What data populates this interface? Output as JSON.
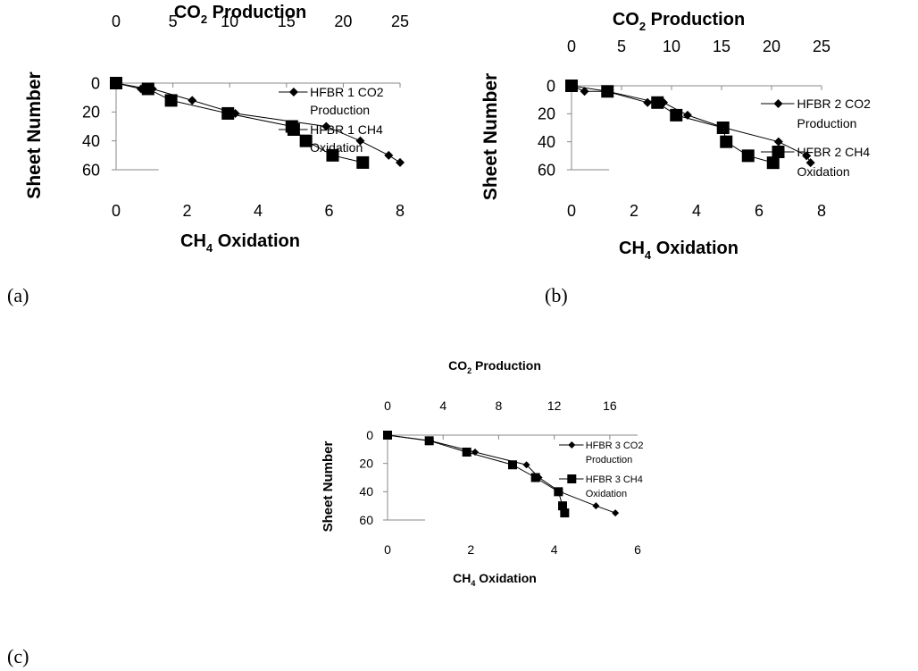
{
  "figure": {
    "panel_labels": [
      "(a)",
      "(b)",
      "(c)"
    ]
  },
  "chart_data": [
    {
      "type": "scatter",
      "panel": "(a)",
      "title": "",
      "xlabel_bottom_main": "CH",
      "xlabel_bottom_sub": "4",
      "xlabel_bottom_tail": " Oxidation",
      "xlabel_top_main": "CO",
      "xlabel_top_sub": "2",
      "xlabel_top_tail": " Production",
      "ylabel": "Sheet Number",
      "xlim_bottom": [
        0,
        8
      ],
      "xticks_bottom": [
        "0",
        "2",
        "4",
        "6",
        "8"
      ],
      "xlim_top": [
        0,
        25
      ],
      "xticks_top": [
        "0",
        "5",
        "10",
        "15",
        "20",
        "25"
      ],
      "ylim": [
        0,
        60
      ],
      "yticks": [
        "0",
        "20",
        "40",
        "60"
      ],
      "y_inverted": true,
      "grid": false,
      "legend_position": "right",
      "series": [
        {
          "name": "HFBR 1 CO2 Production",
          "legend_lines": [
            "HFBR 1 CO2",
            "Production"
          ],
          "marker": "diamond",
          "axis": "top",
          "x": [
            0,
            2.2,
            3.2,
            6.7,
            10.5,
            18.5,
            21.5,
            24,
            25
          ],
          "y": [
            0,
            4,
            4,
            12,
            21,
            30,
            40,
            50,
            55
          ]
        },
        {
          "name": "HFBR 1 CH4 Oxidation",
          "legend_lines": [
            "HFBR 1 CH4",
            "Oxidation"
          ],
          "marker": "square",
          "axis": "bottom",
          "x": [
            0,
            0.9,
            1.55,
            3.15,
            4.95,
            5.35,
            6.1,
            6.95
          ],
          "y": [
            0,
            4,
            12,
            21,
            30,
            40,
            50,
            55
          ]
        }
      ]
    },
    {
      "type": "scatter",
      "panel": "(b)",
      "title": "",
      "xlabel_bottom_main": "CH",
      "xlabel_bottom_sub": "4",
      "xlabel_bottom_tail": " Oxidation",
      "xlabel_top_main": "CO",
      "xlabel_top_sub": "2",
      "xlabel_top_tail": " Production",
      "ylabel": "Sheet Number",
      "xlim_bottom": [
        0,
        8
      ],
      "xticks_bottom": [
        "0",
        "2",
        "4",
        "6",
        "8"
      ],
      "xlim_top": [
        0,
        25
      ],
      "xticks_top": [
        "0",
        "5",
        "10",
        "15",
        "20",
        "25"
      ],
      "ylim": [
        0,
        60
      ],
      "yticks": [
        "0",
        "20",
        "40",
        "60"
      ],
      "y_inverted": true,
      "grid": false,
      "legend_position": "right",
      "series": [
        {
          "name": "HFBR 2 CO2 Production",
          "legend_lines": [
            "HFBR 2 CO2",
            "Production"
          ],
          "marker": "diamond",
          "axis": "top",
          "x": [
            0,
            1.3,
            3.5,
            7.6,
            9.2,
            11.6,
            15.3,
            20.7,
            23.5,
            23.9
          ],
          "y": [
            0,
            4,
            4,
            12,
            12,
            21,
            30,
            40,
            50,
            55
          ]
        },
        {
          "name": "HFBR 2 CH4 Oxidation",
          "legend_lines": [
            "HFBR 2 CH4",
            "Oxidation"
          ],
          "marker": "square",
          "axis": "bottom",
          "x": [
            0,
            1.15,
            2.75,
            3.35,
            4.85,
            4.95,
            5.65,
            6.45
          ],
          "y": [
            0,
            4,
            12,
            21,
            30,
            40,
            50,
            55
          ]
        }
      ]
    },
    {
      "type": "scatter",
      "panel": "(c)",
      "title": "",
      "xlabel_bottom_main": "CH",
      "xlabel_bottom_sub": "4",
      "xlabel_bottom_tail": " Oxidation",
      "xlabel_top_main": "CO",
      "xlabel_top_sub": "2",
      "xlabel_top_tail": " Production",
      "ylabel": "Sheet Number",
      "xlim_bottom": [
        0,
        6
      ],
      "xticks_bottom": [
        "0",
        "2",
        "4",
        "6"
      ],
      "xlim_top": [
        0,
        18
      ],
      "xticks_top": [
        "0",
        "4",
        "8",
        "12",
        "16"
      ],
      "ylim": [
        0,
        60
      ],
      "yticks": [
        "0",
        "20",
        "40",
        "60"
      ],
      "y_inverted": true,
      "grid": false,
      "legend_position": "right",
      "series": [
        {
          "name": "HFBR 3 CO2 Production",
          "legend_lines": [
            "HFBR 3 CO2",
            "Production"
          ],
          "marker": "diamond",
          "axis": "top",
          "x": [
            0,
            3.1,
            6.3,
            10.0,
            10.9,
            12.4,
            15.0,
            16.4
          ],
          "y": [
            0,
            4,
            12,
            21,
            30,
            40,
            50,
            55
          ]
        },
        {
          "name": "HFBR 3 CH4 Oxidation",
          "legend_lines": [
            "HFBR 3 CH4",
            "Oxidation"
          ],
          "marker": "square",
          "axis": "bottom",
          "x": [
            0,
            1.0,
            1.9,
            3.0,
            3.55,
            4.1,
            4.2,
            4.25
          ],
          "y": [
            0,
            4,
            12,
            21,
            30,
            40,
            50,
            55
          ]
        }
      ]
    }
  ]
}
